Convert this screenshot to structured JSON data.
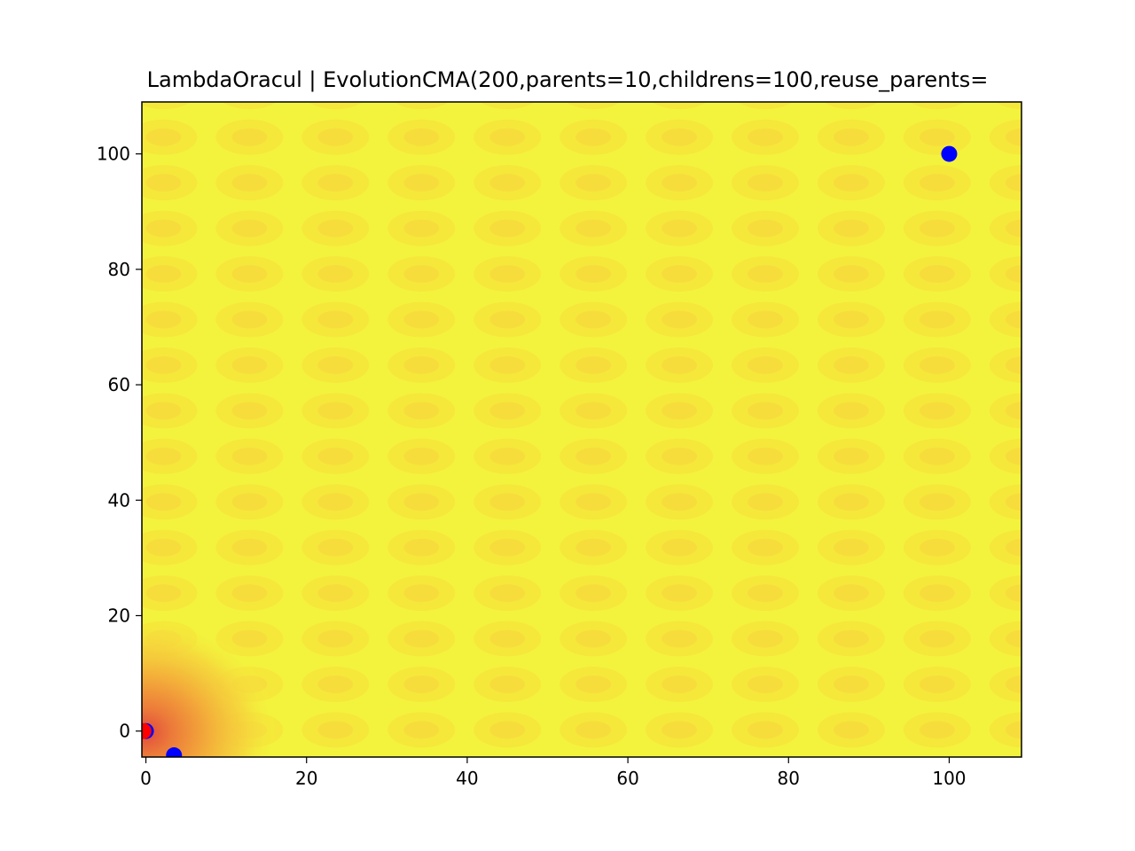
{
  "chart_data": {
    "type": "scatter",
    "title": "LambdaOracul | EvolutionCMA(200,parents=10,childrens=100,reuse_parents=",
    "xlabel": "",
    "ylabel": "",
    "xlim": [
      -0.5,
      109
    ],
    "ylim": [
      -4.5,
      109
    ],
    "x_ticks": [
      0,
      20,
      40,
      60,
      80,
      100
    ],
    "y_ticks": [
      0,
      20,
      40,
      60,
      80,
      100
    ],
    "x_tick_labels": [
      "0",
      "20",
      "40",
      "60",
      "80",
      "100"
    ],
    "y_tick_labels": [
      "0",
      "20",
      "40",
      "60",
      "80",
      "100"
    ],
    "grid": false,
    "background": "filled contour (yellow field with periodic orange-yellow ovals, red-orange minimum near the origin)",
    "colors": {
      "field": "#f3f33d",
      "oval_outer": "#f5e83a",
      "oval_inner": "#f7dd3c",
      "hot": "#f08a3a",
      "core": "#e65a3c"
    },
    "contour_grid": {
      "x_start": 2.2,
      "x_step": 10.7,
      "y_start": 0.2,
      "y_step": 7.9
    },
    "series": [
      {
        "color": "#0000ff",
        "points": [
          {
            "x": 100,
            "y": 100
          },
          {
            "x": 0,
            "y": 0
          },
          {
            "x": 3.5,
            "y": -4.2
          }
        ]
      },
      {
        "color": "#ff0000",
        "points": [
          {
            "x": -0.3,
            "y": 0
          }
        ]
      }
    ]
  }
}
